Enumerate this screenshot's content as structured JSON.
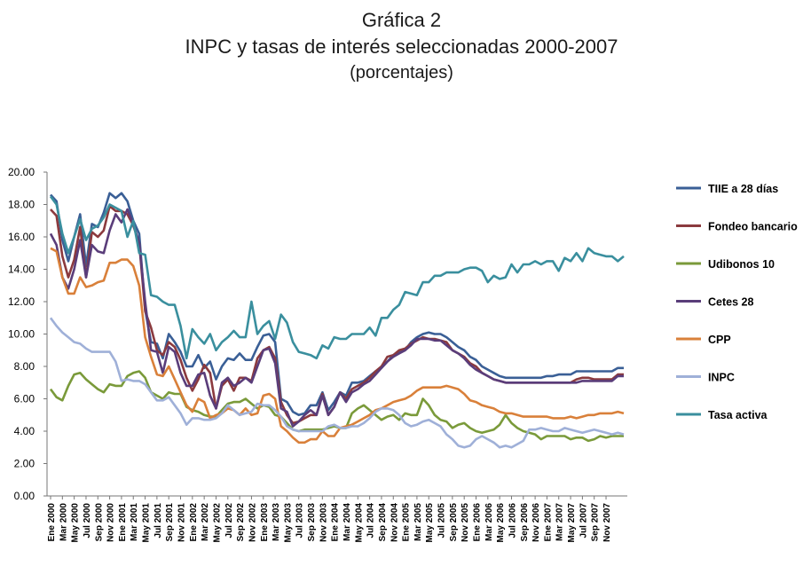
{
  "header": {
    "title": "Gráfica 2",
    "subtitle": "INPC y tasas de interés seleccionadas 2000-2007",
    "unit": "(porcentajes)"
  },
  "chart_data": {
    "type": "line",
    "title": "INPC y tasas de interés seleccionadas 2000-2007",
    "ylim": [
      0,
      20
    ],
    "yticks": [
      "20.00",
      "18.00",
      "16.00",
      "14.00",
      "12.00",
      "10.00",
      "8.00",
      "6.00",
      "4.00",
      "2.00",
      "0.00"
    ],
    "grid": false,
    "legend_position": "right",
    "x_start": "Ene 2000",
    "x_step_months": 1,
    "x_tick_labels": [
      "Ene 2000",
      "Mar 2000",
      "May 2000",
      "Jul 2000",
      "Sep 2000",
      "Nov 2000",
      "Ene 2001",
      "Mar 2001",
      "May 2001",
      "Jul 2001",
      "Sep 2001",
      "Nov 2001",
      "Ene 2002",
      "Mar 2002",
      "May 2002",
      "Jul 2002",
      "Sep 2002",
      "Nov 2002",
      "Ene 2003",
      "Mar 2003",
      "May 2003",
      "Jul 2003",
      "Sep 2003",
      "Nov 2003",
      "Ene 2004",
      "Mar 2004",
      "May 2004",
      "Jul 2004",
      "Sep 2004",
      "Nov 2004",
      "Ene 2005",
      "Mar 2005",
      "May 2005",
      "Jul 2005",
      "Sep 2005",
      "Nov 2005",
      "Ene 2006",
      "Mar 2006",
      "May 2006",
      "Jul 2006",
      "Sep 2006",
      "Nov 2006",
      "Ene 2007",
      "Mar 2007",
      "May 2007",
      "Jul 2007",
      "Sep 2007",
      "Nov 2007"
    ],
    "series": [
      {
        "name": "TIIE  a 28 días",
        "color": "#3a5f96",
        "values": [
          18.6,
          18.2,
          15.8,
          14.5,
          16.0,
          17.4,
          14.2,
          16.8,
          16.6,
          17.5,
          18.7,
          18.4,
          18.7,
          18.2,
          17.0,
          16.2,
          11.5,
          9.5,
          9.4,
          8.5,
          10.0,
          9.5,
          8.9,
          8.0,
          8.0,
          8.7,
          7.9,
          8.3,
          7.2,
          8.0,
          8.5,
          8.4,
          8.8,
          8.4,
          8.4,
          9.2,
          9.9,
          10.0,
          9.5,
          6.0,
          5.8,
          5.2,
          5.0,
          5.1,
          5.6,
          5.6,
          6.4,
          5.3,
          5.8,
          6.4,
          6.2,
          7.0,
          7.0,
          7.1,
          7.4,
          7.7,
          7.9,
          8.3,
          8.7,
          8.9,
          9.0,
          9.5,
          9.8,
          10.0,
          10.1,
          10.0,
          10.0,
          9.8,
          9.5,
          9.2,
          9.0,
          8.6,
          8.4,
          8.0,
          7.8,
          7.6,
          7.4,
          7.3,
          7.3,
          7.3,
          7.3,
          7.3,
          7.3,
          7.3,
          7.4,
          7.4,
          7.5,
          7.5,
          7.5,
          7.7,
          7.7,
          7.7,
          7.7,
          7.7,
          7.7,
          7.7,
          7.9,
          7.9
        ]
      },
      {
        "name": "Fondeo   bancario",
        "color": "#8b3a3e",
        "values": [
          17.7,
          17.3,
          14.8,
          13.5,
          14.6,
          16.6,
          13.5,
          16.3,
          16.0,
          16.4,
          17.9,
          17.6,
          17.6,
          17.4,
          16.7,
          15.6,
          11.4,
          10.4,
          9.0,
          8.7,
          9.5,
          9.2,
          8.4,
          7.3,
          6.5,
          7.2,
          8.1,
          7.6,
          5.4,
          6.8,
          7.2,
          6.5,
          7.3,
          7.3,
          7.1,
          8.5,
          9.0,
          9.2,
          8.5,
          5.8,
          5.0,
          4.5,
          4.6,
          4.8,
          5.0,
          5.0,
          6.3,
          5.0,
          5.5,
          6.4,
          6.0,
          6.6,
          6.8,
          7.0,
          7.3,
          7.7,
          8.0,
          8.6,
          8.7,
          9.0,
          9.1,
          9.4,
          9.6,
          9.8,
          9.7,
          9.7,
          9.6,
          9.5,
          9.0,
          8.8,
          8.6,
          8.2,
          8.0,
          7.6,
          7.4,
          7.2,
          7.1,
          7.0,
          7.0,
          7.0,
          7.0,
          7.0,
          7.0,
          7.0,
          7.0,
          7.0,
          7.0,
          7.0,
          7.0,
          7.2,
          7.3,
          7.3,
          7.2,
          7.2,
          7.2,
          7.2,
          7.5,
          7.5
        ]
      },
      {
        "name": "Udibonos     10",
        "color": "#7a9a3a",
        "values": [
          6.6,
          6.1,
          5.9,
          6.8,
          7.5,
          7.6,
          7.2,
          6.9,
          6.6,
          6.4,
          6.9,
          6.8,
          6.8,
          7.4,
          7.6,
          7.7,
          7.3,
          6.4,
          6.2,
          6.0,
          6.4,
          6.3,
          6.3,
          5.5,
          5.3,
          5.2,
          5.0,
          4.9,
          4.9,
          5.3,
          5.7,
          5.8,
          5.8,
          6.0,
          5.7,
          5.4,
          5.6,
          5.5,
          5.0,
          4.9,
          4.5,
          4.1,
          4.0,
          4.1,
          4.1,
          4.1,
          4.1,
          4.2,
          4.3,
          4.2,
          4.2,
          5.1,
          5.4,
          5.6,
          5.3,
          5.0,
          4.7,
          4.9,
          5.0,
          4.7,
          5.1,
          5.0,
          5.0,
          6.0,
          5.6,
          5.0,
          4.7,
          4.6,
          4.2,
          4.4,
          4.5,
          4.2,
          4.0,
          3.9,
          4.0,
          4.1,
          4.4,
          5.0,
          4.5,
          4.2,
          4.0,
          3.9,
          3.8,
          3.5,
          3.7,
          3.7,
          3.7,
          3.7,
          3.5,
          3.6,
          3.6,
          3.4,
          3.5,
          3.7,
          3.6,
          3.7,
          3.7,
          3.7
        ]
      },
      {
        "name": "Cetes   28",
        "color": "#5a3d7a",
        "values": [
          16.2,
          15.5,
          13.5,
          12.8,
          14.0,
          15.8,
          13.5,
          15.5,
          15.1,
          15.0,
          16.4,
          17.4,
          16.9,
          17.7,
          16.8,
          15.6,
          12.0,
          9.0,
          8.9,
          7.6,
          9.2,
          8.9,
          7.6,
          6.8,
          6.8,
          7.5,
          7.6,
          6.2,
          5.4,
          7.0,
          7.3,
          6.8,
          7.0,
          7.3,
          7.0,
          8.0,
          9.0,
          9.1,
          8.2,
          5.4,
          5.2,
          4.3,
          4.6,
          5.0,
          5.3,
          5.0,
          6.2,
          5.0,
          5.5,
          6.4,
          5.8,
          6.4,
          6.6,
          6.9,
          7.1,
          7.5,
          7.9,
          8.3,
          8.6,
          8.8,
          9.0,
          9.3,
          9.7,
          9.7,
          9.7,
          9.6,
          9.6,
          9.3,
          9.0,
          8.8,
          8.5,
          8.1,
          7.8,
          7.6,
          7.4,
          7.2,
          7.1,
          7.0,
          7.0,
          7.0,
          7.0,
          7.0,
          7.0,
          7.0,
          7.0,
          7.0,
          7.0,
          7.0,
          7.0,
          7.0,
          7.1,
          7.1,
          7.1,
          7.1,
          7.1,
          7.1,
          7.4,
          7.4
        ]
      },
      {
        "name": "CPP",
        "color": "#d9803a",
        "values": [
          15.3,
          15.1,
          13.5,
          12.5,
          12.5,
          13.5,
          12.9,
          13.0,
          13.2,
          13.3,
          14.4,
          14.4,
          14.6,
          14.6,
          14.2,
          13.0,
          9.8,
          8.6,
          7.5,
          7.4,
          8.0,
          7.2,
          6.4,
          5.6,
          5.2,
          6.0,
          5.8,
          4.8,
          5.0,
          5.1,
          5.4,
          5.3,
          5.0,
          5.4,
          5.0,
          5.1,
          6.2,
          6.3,
          6.0,
          4.3,
          4.0,
          3.6,
          3.3,
          3.3,
          3.5,
          3.5,
          4.0,
          3.7,
          3.7,
          4.2,
          4.3,
          4.4,
          4.6,
          4.8,
          5.0,
          5.3,
          5.4,
          5.6,
          5.8,
          5.9,
          6.0,
          6.2,
          6.5,
          6.7,
          6.7,
          6.7,
          6.7,
          6.8,
          6.7,
          6.6,
          6.3,
          5.9,
          5.8,
          5.6,
          5.5,
          5.4,
          5.2,
          5.1,
          5.1,
          5.0,
          4.9,
          4.9,
          4.9,
          4.9,
          4.9,
          4.8,
          4.8,
          4.8,
          4.9,
          4.8,
          4.9,
          5.0,
          5.0,
          5.1,
          5.1,
          5.1,
          5.2,
          5.1
        ]
      },
      {
        "name": "INPC",
        "color": "#9fb0d8",
        "values": [
          11.0,
          10.5,
          10.1,
          9.8,
          9.5,
          9.4,
          9.1,
          8.9,
          8.9,
          8.9,
          8.9,
          8.3,
          7.1,
          7.2,
          7.1,
          7.1,
          6.9,
          6.4,
          5.9,
          5.9,
          6.1,
          5.6,
          5.1,
          4.4,
          4.8,
          4.8,
          4.7,
          4.7,
          4.8,
          5.1,
          5.6,
          5.3,
          5.0,
          5.1,
          5.2,
          5.7,
          5.6,
          5.6,
          5.3,
          4.9,
          4.3,
          4.1,
          4.0,
          4.0,
          4.0,
          4.0,
          4.0,
          4.3,
          4.4,
          4.2,
          4.2,
          4.3,
          4.3,
          4.5,
          4.8,
          5.2,
          5.4,
          5.4,
          5.3,
          5.0,
          4.5,
          4.3,
          4.4,
          4.6,
          4.7,
          4.5,
          4.3,
          3.8,
          3.5,
          3.1,
          3.0,
          3.1,
          3.5,
          3.7,
          3.5,
          3.3,
          3.0,
          3.1,
          3.0,
          3.2,
          3.4,
          4.1,
          4.1,
          4.2,
          4.1,
          4.0,
          4.0,
          4.2,
          4.1,
          4.0,
          3.9,
          4.0,
          4.1,
          4.0,
          3.9,
          3.8,
          3.9,
          3.8
        ]
      },
      {
        "name": "Tasa  activa",
        "color": "#3a8f9e",
        "values": [
          18.5,
          18.0,
          16.2,
          15.0,
          16.0,
          17.1,
          15.8,
          16.5,
          16.7,
          17.2,
          18.0,
          17.8,
          17.6,
          16.0,
          17.0,
          15.0,
          14.9,
          12.4,
          12.3,
          12.0,
          11.8,
          11.8,
          10.5,
          8.5,
          10.3,
          9.8,
          9.4,
          10.0,
          9.0,
          9.5,
          9.8,
          10.2,
          9.8,
          9.8,
          12.0,
          10.0,
          10.5,
          10.8,
          9.7,
          11.2,
          10.7,
          9.5,
          8.9,
          8.8,
          8.7,
          8.5,
          9.3,
          9.1,
          9.8,
          9.7,
          9.7,
          10.0,
          10.0,
          10.0,
          10.4,
          9.9,
          11.0,
          11.0,
          11.5,
          11.8,
          12.6,
          12.5,
          12.4,
          13.2,
          13.2,
          13.6,
          13.6,
          13.8,
          13.8,
          13.8,
          14.0,
          14.1,
          14.1,
          13.9,
          13.2,
          13.6,
          13.4,
          13.5,
          14.3,
          13.8,
          14.3,
          14.3,
          14.5,
          14.3,
          14.5,
          14.5,
          13.9,
          14.7,
          14.5,
          15.0,
          14.5,
          15.3,
          15.0,
          14.9,
          14.8,
          14.8,
          14.5,
          14.8
        ]
      }
    ]
  }
}
